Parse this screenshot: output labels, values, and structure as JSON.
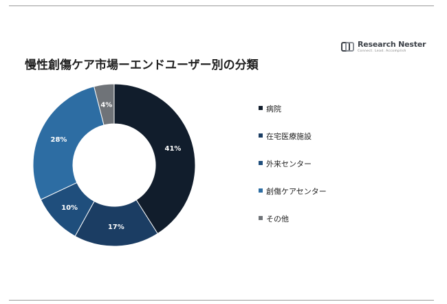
{
  "header": {
    "title": "慢性創傷ケア市場ーエンドユーザー別の分類"
  },
  "logo": {
    "name": "Research Nester",
    "tagline": "Connect. Lead. Accomplish"
  },
  "chart_data": {
    "type": "pie",
    "donut": true,
    "categories": [
      "病院",
      "在宅医療施設",
      "外来センター",
      "創傷ケアセンター",
      "その他"
    ],
    "values": [
      41,
      17,
      10,
      28,
      4
    ],
    "labels": [
      "41%",
      "17%",
      "10%",
      "28%",
      "4%"
    ],
    "colors": [
      "#111d2c",
      "#1b3d63",
      "#1f4e7c",
      "#2d6da3",
      "#6f7378"
    ],
    "legend_placement": "right"
  }
}
